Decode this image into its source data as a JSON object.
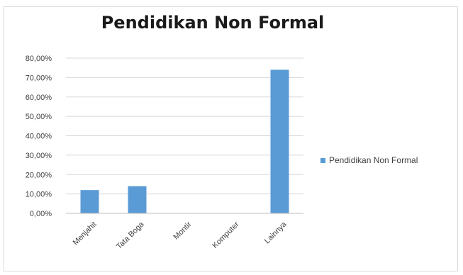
{
  "chart_data": {
    "type": "bar",
    "title": "Pendidikan Non Formal",
    "categories": [
      "Menjahit",
      "Tata Boga",
      "Montir",
      "Komputer",
      "Lainnya"
    ],
    "series": [
      {
        "name": "Pendidikan Non Formal",
        "values": [
          12.0,
          14.0,
          0.0,
          0.0,
          74.0
        ]
      }
    ],
    "y_ticks": [
      "0,00%",
      "10,00%",
      "20,00%",
      "30,00%",
      "40,00%",
      "50,00%",
      "60,00%",
      "70,00%",
      "80,00%"
    ],
    "ylim": [
      0,
      80
    ],
    "unit": "%",
    "grid": true,
    "legend_position": "right",
    "bar_color": "#5b9bd5"
  }
}
